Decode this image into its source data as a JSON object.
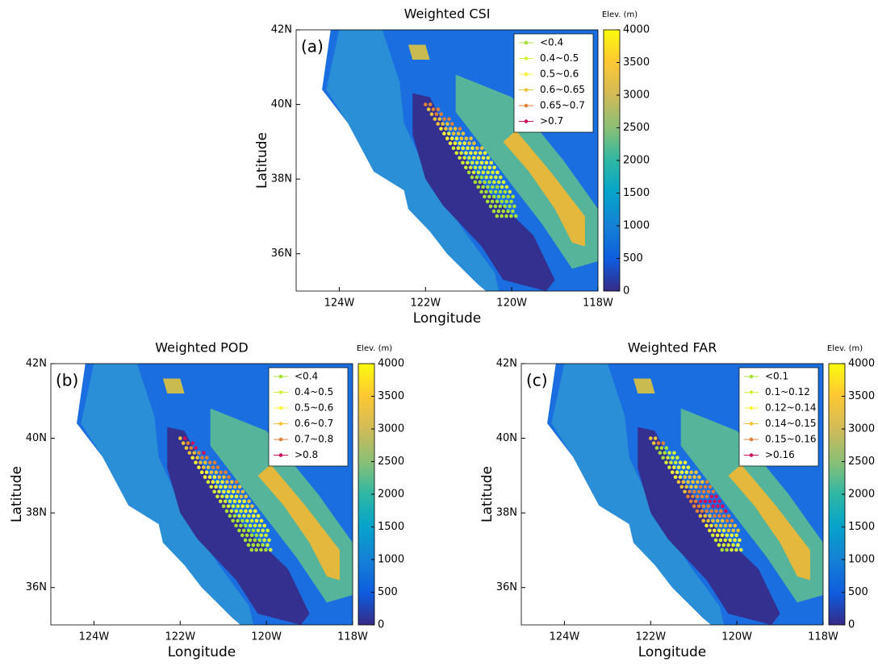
{
  "figure": {
    "axes": {
      "xlim": [
        -125,
        -118
      ],
      "ylim": [
        35,
        42
      ],
      "xticks": [
        {
          "value": -124,
          "label": "124W"
        },
        {
          "value": -122,
          "label": "122W"
        },
        {
          "value": -120,
          "label": "120W"
        },
        {
          "value": -118,
          "label": "118W"
        }
      ],
      "yticks": [
        {
          "value": 36,
          "label": "36N"
        },
        {
          "value": 38,
          "label": "38N"
        },
        {
          "value": 40,
          "label": "40N"
        },
        {
          "value": 42,
          "label": "42N"
        }
      ],
      "clim": [
        0,
        4000
      ],
      "cticks": [
        0,
        500,
        1000,
        1500,
        2000,
        2500,
        3000,
        3500,
        4000
      ]
    },
    "panels": [
      {
        "label": "(a)",
        "title": "Weighted CSI",
        "x_label": "Longitude",
        "y_label": "Latitude",
        "colorbar_label": "Elev. (m)",
        "legend": [
          {
            "name": "<0.4",
            "color": "#a8e03a"
          },
          {
            "name": "0.4~0.5",
            "color": "#d4ef3a"
          },
          {
            "name": "0.5~0.6",
            "color": "#f7f53a"
          },
          {
            "name": "0.6~0.65",
            "color": "#f0c23a"
          },
          {
            "name": "0.65~0.7",
            "color": "#e0813a"
          },
          {
            "name": ">0.7",
            "color": "#cc1060"
          }
        ]
      },
      {
        "label": "(b)",
        "title": "Weighted POD",
        "x_label": "Longitude",
        "y_label": "Latitude",
        "colorbar_label": "Elev. (m)",
        "legend": [
          {
            "name": "<0.4",
            "color": "#a8e03a"
          },
          {
            "name": "0.4~0.5",
            "color": "#d4ef3a"
          },
          {
            "name": "0.5~0.6",
            "color": "#f7f53a"
          },
          {
            "name": "0.6~0.7",
            "color": "#f0c23a"
          },
          {
            "name": "0.7~0.8",
            "color": "#e0813a"
          },
          {
            "name": ">0.8",
            "color": "#cc1060"
          }
        ]
      },
      {
        "label": "(c)",
        "title": "Weighted FAR",
        "x_label": "Longitude",
        "y_label": "Latitude",
        "colorbar_label": "Elev. (m)",
        "legend": [
          {
            "name": "<0.1",
            "color": "#a8e03a"
          },
          {
            "name": "0.1~0.12",
            "color": "#d4ef3a"
          },
          {
            "name": "0.12~0.14",
            "color": "#f7f53a"
          },
          {
            "name": "0.14~0.15",
            "color": "#f0c23a"
          },
          {
            "name": "0.15~0.16",
            "color": "#e0813a"
          },
          {
            "name": ">0.16",
            "color": "#cc1060"
          }
        ]
      }
    ]
  }
}
